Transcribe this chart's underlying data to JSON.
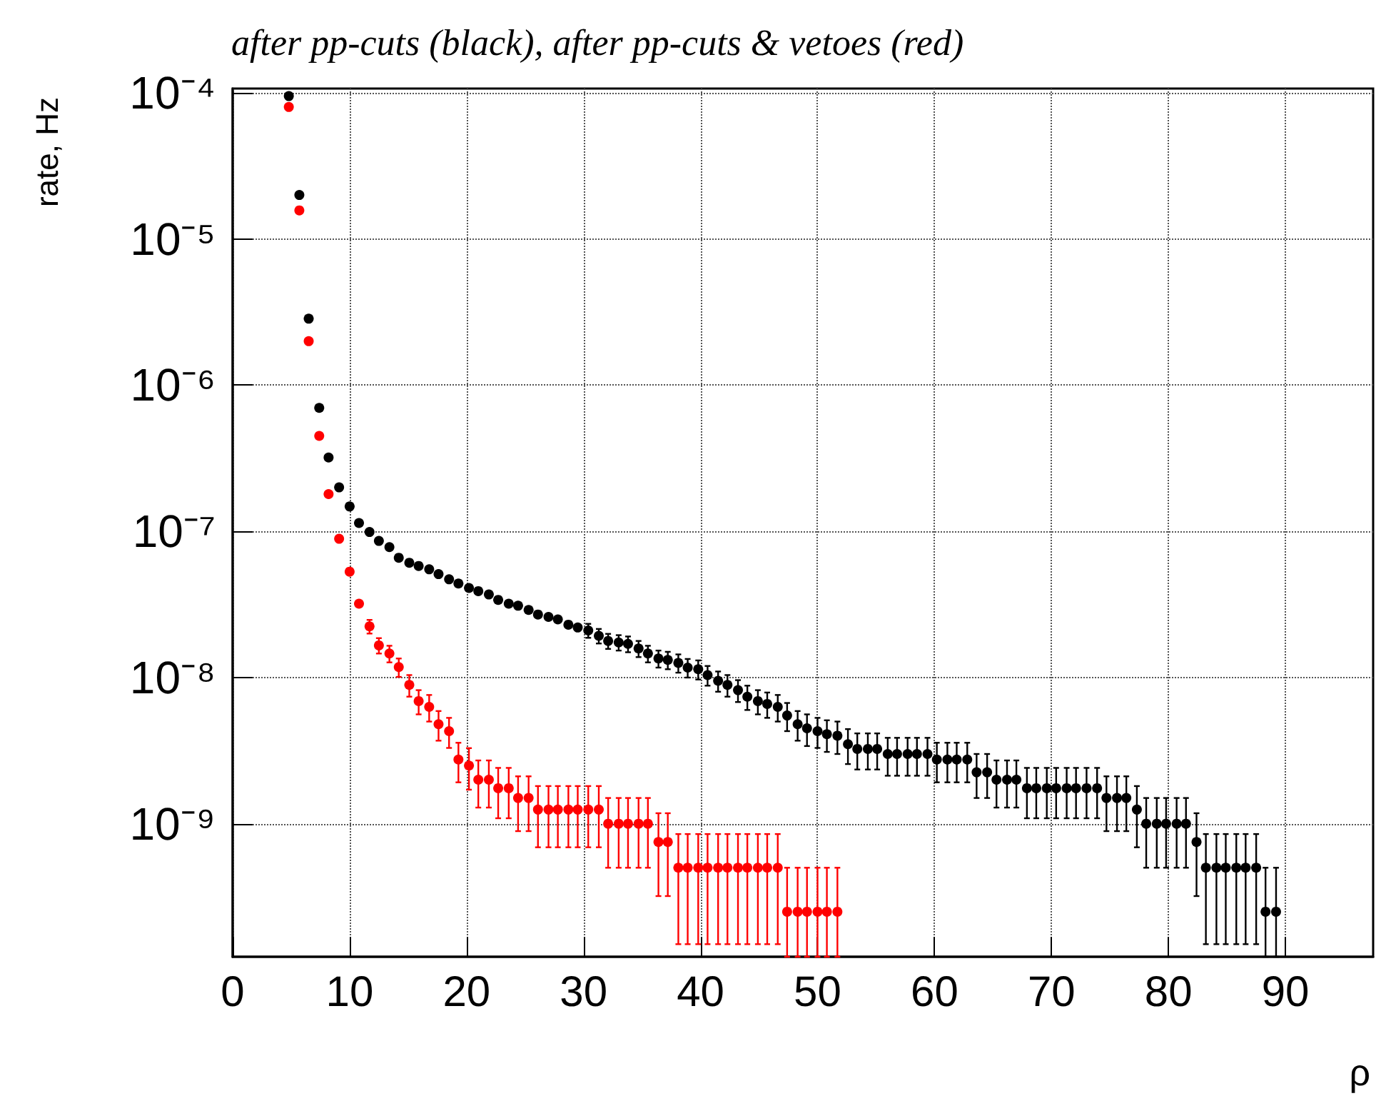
{
  "chart_data": {
    "type": "scatter",
    "title": "after pp-cuts (black), after pp-cuts & vetoes (red)",
    "xlabel": "ρ",
    "ylabel": "rate, Hz",
    "x": [
      4.8,
      5.7,
      6.5,
      7.4,
      8.2,
      9.1,
      10.0,
      10.8,
      11.7,
      12.5,
      13.4,
      14.2,
      15.1,
      15.9,
      16.8,
      17.6,
      18.5,
      19.3,
      20.2,
      21.0,
      21.9,
      22.7,
      23.6,
      24.4,
      25.3,
      26.1,
      27.0,
      27.8,
      28.7,
      29.5,
      30.4,
      31.3,
      32.1,
      33.0,
      33.8,
      34.7,
      35.5,
      36.4,
      37.2,
      38.1,
      38.9,
      39.8,
      40.6,
      41.5,
      42.3,
      43.2,
      44.0,
      44.9,
      45.7,
      46.6,
      47.4,
      48.3,
      49.1,
      50.0,
      50.8,
      51.7,
      52.6,
      53.4,
      54.3,
      55.1,
      56.0,
      56.8,
      57.7,
      58.5,
      59.4,
      60.2,
      61.1,
      61.9,
      62.8,
      63.6,
      64.5,
      65.3,
      66.2,
      67.0,
      67.9,
      68.7,
      69.6,
      70.4,
      71.3,
      72.1,
      73.0,
      73.9,
      74.7,
      75.6,
      76.4,
      77.3,
      78.1,
      79.0,
      79.8,
      80.7,
      81.5,
      82.4,
      83.2,
      84.1,
      84.9,
      85.8,
      86.6,
      87.5,
      88.3,
      89.2
    ],
    "series": [
      {
        "color": "#000000",
        "values": [
          9.5e-05,
          2e-05,
          2.85e-06,
          7e-07,
          3.2e-07,
          2e-07,
          1.48e-07,
          1.14e-07,
          9.9e-08,
          8.6e-08,
          7.8e-08,
          6.6e-08,
          6.1e-08,
          5.8e-08,
          5.5e-08,
          5.1e-08,
          4.7e-08,
          4.4e-08,
          4.1e-08,
          3.9e-08,
          3.7e-08,
          3.4e-08,
          3.2e-08,
          3.1e-08,
          2.9e-08,
          2.7e-08,
          2.6e-08,
          2.5e-08,
          2.3e-08,
          2.2e-08,
          2.1e-08,
          1.93e-08,
          1.78e-08,
          1.74e-08,
          1.7e-08,
          1.58e-08,
          1.46e-08,
          1.35e-08,
          1.32e-08,
          1.26e-08,
          1.17e-08,
          1.14e-08,
          1.04e-08,
          9.5e-09,
          8.9e-09,
          8.2e-09,
          7.4e-09,
          6.9e-09,
          6.6e-09,
          6.3e-09,
          5.5e-09,
          4.8e-09,
          4.5e-09,
          4.3e-09,
          4.1e-09,
          4e-09,
          3.5e-09,
          3.25e-09,
          3.25e-09,
          3.25e-09,
          3e-09,
          3e-09,
          3e-09,
          3e-09,
          3e-09,
          2.75e-09,
          2.75e-09,
          2.75e-09,
          2.75e-09,
          2.25e-09,
          2.25e-09,
          2e-09,
          2e-09,
          2e-09,
          1.75e-09,
          1.75e-09,
          1.75e-09,
          1.75e-09,
          1.75e-09,
          1.75e-09,
          1.75e-09,
          1.75e-09,
          1.5e-09,
          1.5e-09,
          1.5e-09,
          1.25e-09,
          1e-09,
          1e-09,
          1e-09,
          1e-09,
          1e-09,
          7.5e-10,
          5e-10,
          5e-10,
          5e-10,
          5e-10,
          5e-10,
          5e-10,
          2.5e-10,
          2.5e-10
        ],
        "errors": [
          null,
          null,
          null,
          null,
          null,
          null,
          null,
          null,
          null,
          null,
          null,
          null,
          null,
          null,
          null,
          null,
          null,
          null,
          null,
          null,
          null,
          null,
          null,
          null,
          null,
          null,
          null,
          null,
          null,
          null,
          2.3e-09,
          2.2e-09,
          2.1e-09,
          2.1e-09,
          2.1e-09,
          2e-09,
          1.9e-09,
          1.8e-09,
          1.8e-09,
          1.8e-09,
          1.7e-09,
          1.7e-09,
          1.6e-09,
          1.5e-09,
          1.5e-09,
          1.4e-09,
          1.4e-09,
          1.3e-09,
          1.3e-09,
          1.3e-09,
          1.2e-09,
          1.1e-09,
          1.1e-09,
          1e-09,
          1e-09,
          1e-09,
          9.4e-10,
          9e-10,
          9e-10,
          9e-10,
          8.7e-10,
          8.7e-10,
          8.7e-10,
          8.7e-10,
          8.7e-10,
          8.3e-10,
          8.3e-10,
          8.3e-10,
          8.3e-10,
          7.5e-10,
          7.5e-10,
          7.1e-10,
          7.1e-10,
          7.1e-10,
          6.6e-10,
          6.6e-10,
          6.6e-10,
          6.6e-10,
          6.6e-10,
          6.6e-10,
          6.6e-10,
          6.6e-10,
          6.1e-10,
          6.1e-10,
          6.1e-10,
          5.6e-10,
          5e-10,
          5e-10,
          5e-10,
          5e-10,
          5e-10,
          4.3e-10,
          3.5e-10,
          3.5e-10,
          3.5e-10,
          3.5e-10,
          3.5e-10,
          3.5e-10,
          [
            1.23e-10,
            5e-10
          ],
          [
            1.23e-10,
            5e-10
          ]
        ]
      },
      {
        "color": "#ff0000",
        "x": [
          4.8,
          5.7,
          6.5,
          7.4,
          8.2,
          9.1,
          10.0,
          10.8,
          11.7,
          12.5,
          13.4,
          14.2,
          15.1,
          15.9,
          16.8,
          17.6,
          18.5,
          19.3,
          20.2,
          21.0,
          21.9,
          22.7,
          23.6,
          24.4,
          25.3,
          26.1,
          27.0,
          27.8,
          28.7,
          29.5,
          30.4,
          31.3,
          32.1,
          33.0,
          33.8,
          34.7,
          35.5,
          36.4,
          37.2,
          38.1,
          38.9,
          39.8,
          40.6,
          41.5,
          42.3,
          43.2,
          44.0,
          44.9,
          45.7,
          46.6,
          47.4,
          48.3,
          49.1,
          50.0,
          50.8,
          51.7
        ],
        "values": [
          8e-05,
          1.57e-05,
          2e-06,
          4.5e-07,
          1.8e-07,
          8.9e-08,
          5.3e-08,
          3.2e-08,
          2.24e-08,
          1.66e-08,
          1.46e-08,
          1.18e-08,
          8.9e-09,
          6.9e-09,
          6.3e-09,
          4.8e-09,
          4.3e-09,
          2.75e-09,
          2.5e-09,
          2e-09,
          2e-09,
          1.75e-09,
          1.75e-09,
          1.5e-09,
          1.5e-09,
          1.25e-09,
          1.25e-09,
          1.25e-09,
          1.25e-09,
          1.25e-09,
          1.25e-09,
          1.25e-09,
          1e-09,
          1e-09,
          1e-09,
          1e-09,
          1e-09,
          7.5e-10,
          7.5e-10,
          5e-10,
          5e-10,
          5e-10,
          5e-10,
          5e-10,
          5e-10,
          5e-10,
          5e-10,
          5e-10,
          5e-10,
          5e-10,
          2.5e-10,
          2.5e-10,
          2.5e-10,
          2.5e-10,
          2.5e-10,
          2.5e-10
        ],
        "errors": [
          null,
          null,
          null,
          null,
          null,
          null,
          null,
          null,
          2.4e-09,
          2e-09,
          1.9e-09,
          1.7e-09,
          1.5e-09,
          1.3e-09,
          1.3e-09,
          1.1e-09,
          1e-09,
          8.3e-10,
          7.9e-10,
          7.1e-10,
          7.1e-10,
          6.6e-10,
          6.6e-10,
          6.1e-10,
          6.1e-10,
          5.6e-10,
          5.6e-10,
          5.6e-10,
          5.6e-10,
          5.6e-10,
          5.6e-10,
          5.6e-10,
          5e-10,
          5e-10,
          5e-10,
          5e-10,
          5e-10,
          4.3e-10,
          4.3e-10,
          3.5e-10,
          3.5e-10,
          3.5e-10,
          3.5e-10,
          3.5e-10,
          3.5e-10,
          3.5e-10,
          3.5e-10,
          3.5e-10,
          3.5e-10,
          3.5e-10,
          [
            1.23e-10,
            5e-10
          ],
          [
            1.23e-10,
            5e-10
          ],
          [
            1.23e-10,
            5e-10
          ],
          [
            1.23e-10,
            5e-10
          ],
          [
            1.23e-10,
            5e-10
          ],
          [
            1.23e-10,
            5e-10
          ]
        ]
      }
    ],
    "xlim": [
      0,
      97.5
    ],
    "xticks": [
      0,
      10,
      20,
      30,
      40,
      50,
      60,
      70,
      80,
      90
    ],
    "ylim": [
      1.23e-10,
      0.000107
    ],
    "yticks": [
      {
        "value": 1e-09,
        "label": "10⁻⁹"
      },
      {
        "value": 1e-08,
        "label": "10⁻⁸"
      },
      {
        "value": 1e-07,
        "label": "10⁻⁷"
      },
      {
        "value": 1e-06,
        "label": "10⁻⁶"
      },
      {
        "value": 1e-05,
        "label": "10⁻⁵"
      },
      {
        "value": 0.0001,
        "label": "10⁻⁴"
      }
    ],
    "log": "y",
    "grid": true,
    "marker": "circle"
  }
}
